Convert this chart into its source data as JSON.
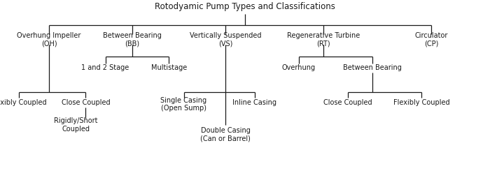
{
  "title": "Rotodyamic Pump Types and Classifications",
  "background_color": "#ffffff",
  "line_color": "#1a1a1a",
  "text_color": "#1a1a1a",
  "font_size": 7.0,
  "title_font_size": 8.5,
  "edges": {
    "root_line": [
      0.5,
      0.92,
      0.5,
      0.855
    ],
    "top_hline": [
      0.1,
      0.855,
      0.88,
      0.855
    ],
    "OH_vline": [
      0.1,
      0.855,
      0.1,
      0.8
    ],
    "BB_vline": [
      0.27,
      0.855,
      0.27,
      0.8
    ],
    "VS_vline": [
      0.46,
      0.855,
      0.46,
      0.8
    ],
    "RT_vline": [
      0.66,
      0.855,
      0.66,
      0.8
    ],
    "CP_vline": [
      0.88,
      0.855,
      0.88,
      0.8
    ],
    "BB_down": [
      0.27,
      0.74,
      0.27,
      0.67
    ],
    "BB_hline": [
      0.215,
      0.67,
      0.345,
      0.67
    ],
    "BB_1_vline": [
      0.215,
      0.67,
      0.215,
      0.63
    ],
    "BB_m_vline": [
      0.345,
      0.67,
      0.345,
      0.63
    ],
    "RT_down": [
      0.66,
      0.74,
      0.66,
      0.67
    ],
    "RT_hline": [
      0.61,
      0.67,
      0.76,
      0.67
    ],
    "RT_o_vline": [
      0.61,
      0.67,
      0.61,
      0.63
    ],
    "RT_b_vline": [
      0.76,
      0.67,
      0.76,
      0.63
    ],
    "OH_down": [
      0.1,
      0.74,
      0.1,
      0.46
    ],
    "OH_hline": [
      0.038,
      0.46,
      0.175,
      0.46
    ],
    "OH_f_vline": [
      0.038,
      0.46,
      0.038,
      0.43
    ],
    "OH_c_vline": [
      0.175,
      0.46,
      0.175,
      0.43
    ],
    "OH_rigid_line": [
      0.175,
      0.37,
      0.175,
      0.31
    ],
    "VS_down": [
      0.46,
      0.74,
      0.46,
      0.46
    ],
    "VS_hline": [
      0.375,
      0.46,
      0.52,
      0.46
    ],
    "VS_s_vline": [
      0.375,
      0.46,
      0.375,
      0.43
    ],
    "VS_i_vline": [
      0.52,
      0.46,
      0.52,
      0.43
    ],
    "VS_double_line": [
      0.46,
      0.46,
      0.46,
      0.27
    ],
    "RT_bb_down": [
      0.76,
      0.575,
      0.76,
      0.46
    ],
    "RT_bb_hline": [
      0.71,
      0.46,
      0.86,
      0.46
    ],
    "RT_c_vline": [
      0.71,
      0.46,
      0.71,
      0.43
    ],
    "RT_f_vline": [
      0.86,
      0.46,
      0.86,
      0.43
    ]
  },
  "texts": {
    "title": [
      0.5,
      0.96,
      "Rotodyamic Pump Types and Classifications",
      8.5,
      "center"
    ],
    "OH": [
      0.1,
      0.77,
      "Overhung Impeller\n(OH)",
      7.0,
      "center"
    ],
    "BB": [
      0.27,
      0.77,
      "Between Bearing\n(BB)",
      7.0,
      "center"
    ],
    "VS": [
      0.46,
      0.77,
      "Vertically Suspended\n(VS)",
      7.0,
      "center"
    ],
    "RT": [
      0.66,
      0.77,
      "Regenerative Turbine\n(RT)",
      7.0,
      "center"
    ],
    "CP": [
      0.88,
      0.77,
      "Circulator\n(CP)",
      7.0,
      "center"
    ],
    "BB_1and2": [
      0.215,
      0.605,
      "1 and 2 Stage",
      7.0,
      "center"
    ],
    "BB_multi": [
      0.345,
      0.605,
      "Multistage",
      7.0,
      "center"
    ],
    "RT_over": [
      0.61,
      0.605,
      "Overhung",
      7.0,
      "center"
    ],
    "RT_bb": [
      0.76,
      0.605,
      "Between Bearing",
      7.0,
      "center"
    ],
    "OH_flex": [
      0.038,
      0.4,
      "Flexibly Coupled",
      7.0,
      "center"
    ],
    "OH_close": [
      0.175,
      0.4,
      "Close Coupled",
      7.0,
      "center"
    ],
    "OH_rigid": [
      0.155,
      0.27,
      "Rigidly/Short\nCoupled",
      7.0,
      "center"
    ],
    "VS_single": [
      0.375,
      0.39,
      "Single Casing\n(Open Sump)",
      7.0,
      "center"
    ],
    "VS_inline": [
      0.52,
      0.4,
      "Inline Casing",
      7.0,
      "center"
    ],
    "VS_double": [
      0.46,
      0.215,
      "Double Casing\n(Can or Barrel)",
      7.0,
      "center"
    ],
    "RT_close": [
      0.71,
      0.4,
      "Close Coupled",
      7.0,
      "center"
    ],
    "RT_flex": [
      0.86,
      0.4,
      "Flexibly Coupled",
      7.0,
      "center"
    ]
  }
}
